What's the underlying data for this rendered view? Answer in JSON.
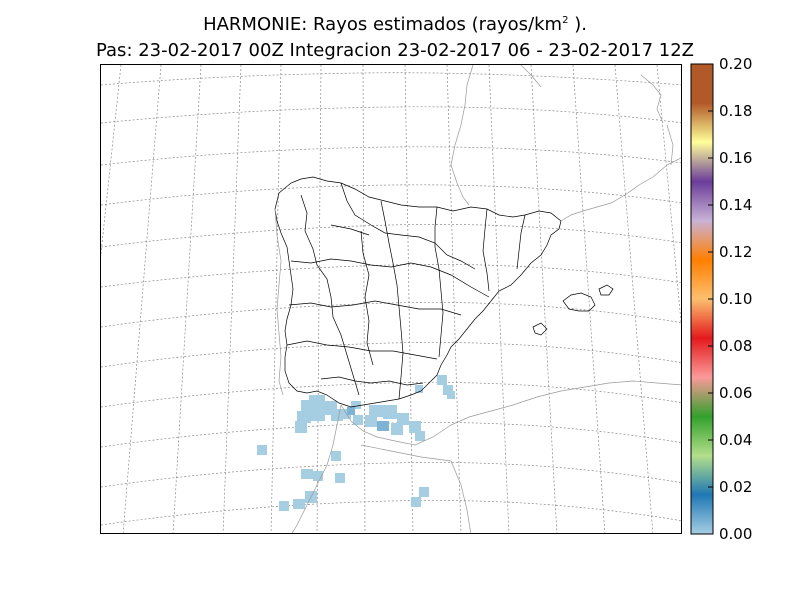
{
  "title": {
    "line1_main": "HARMONIE: Rayos estimados  (rayos/km",
    "line1_sup": "2",
    "line1_end": " ).",
    "line2": "Pas: 23-02-2017 00Z Integracion 23-02-2017 06 - 23-02-2017 12Z"
  },
  "colorbar": {
    "ticks": [
      "0.00",
      "0.02",
      "0.04",
      "0.06",
      "0.08",
      "0.10",
      "0.12",
      "0.14",
      "0.16",
      "0.18",
      "0.20"
    ],
    "range": [
      0,
      0.2
    ],
    "colors": [
      "#a6cee3",
      "#1f78b4",
      "#b2df8a",
      "#33a02c",
      "#fb9a99",
      "#e31a1c",
      "#fdbf6f",
      "#ff7f00",
      "#cab2d6",
      "#6a3d9a",
      "#ffff99",
      "#b15928"
    ]
  },
  "chart_data": {
    "type": "heatmap",
    "title": "HARMONIE: Rayos estimados  (rayos/km2 ). Pas: 23-02-2017 00Z Integracion 23-02-2017 06 - 23-02-2017 12Z",
    "unit": "rayos/km2",
    "region": "Iberian Peninsula",
    "valid_period": "23-02-2017 06 - 23-02-2017 12Z",
    "observed_value_range": [
      0.0,
      0.02
    ],
    "grid": true,
    "legend": "colorbar-right"
  }
}
